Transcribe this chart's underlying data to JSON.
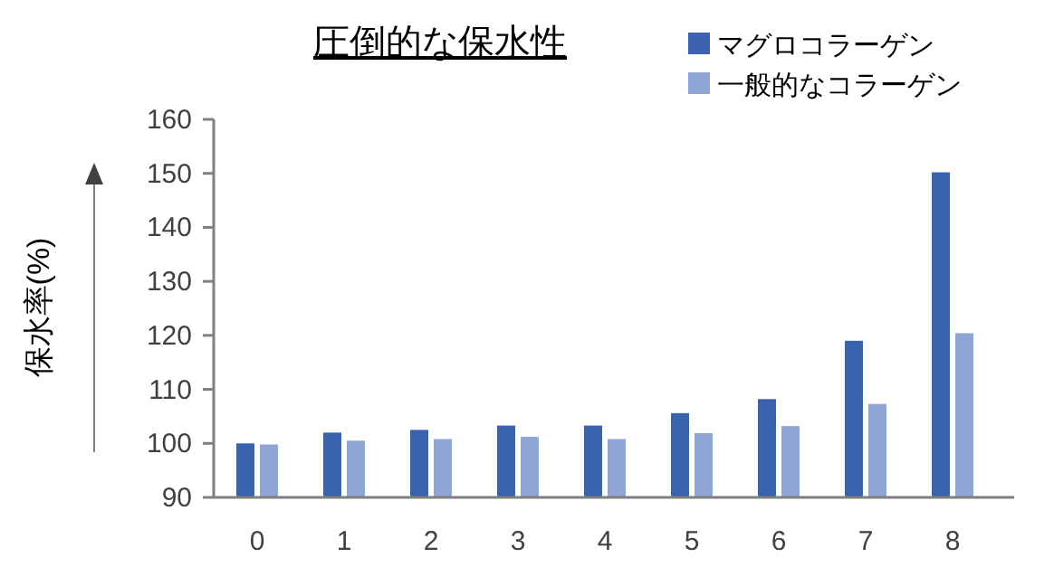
{
  "chart_data": {
    "type": "bar",
    "title": "圧倒的な保水性",
    "ylabel": "保水率(%)",
    "categories": [
      "0",
      "1",
      "2",
      "3",
      "4",
      "5",
      "6",
      "7",
      "8"
    ],
    "series": [
      {
        "name": "マグロコラーゲン",
        "color": "#3a62ae",
        "values": [
          100,
          102,
          102.5,
          103.3,
          103.3,
          105.6,
          108.2,
          119,
          150.2
        ]
      },
      {
        "name": "一般的なコラーゲン",
        "color": "#8fa5d6",
        "values": [
          99.8,
          100.5,
          100.8,
          101.2,
          100.8,
          101.9,
          103.2,
          107.3,
          120.4
        ]
      }
    ],
    "ylim": [
      90,
      160
    ],
    "yticks": [
      90,
      100,
      110,
      120,
      130,
      140,
      150,
      160
    ],
    "grid": false,
    "legend": "top right"
  }
}
